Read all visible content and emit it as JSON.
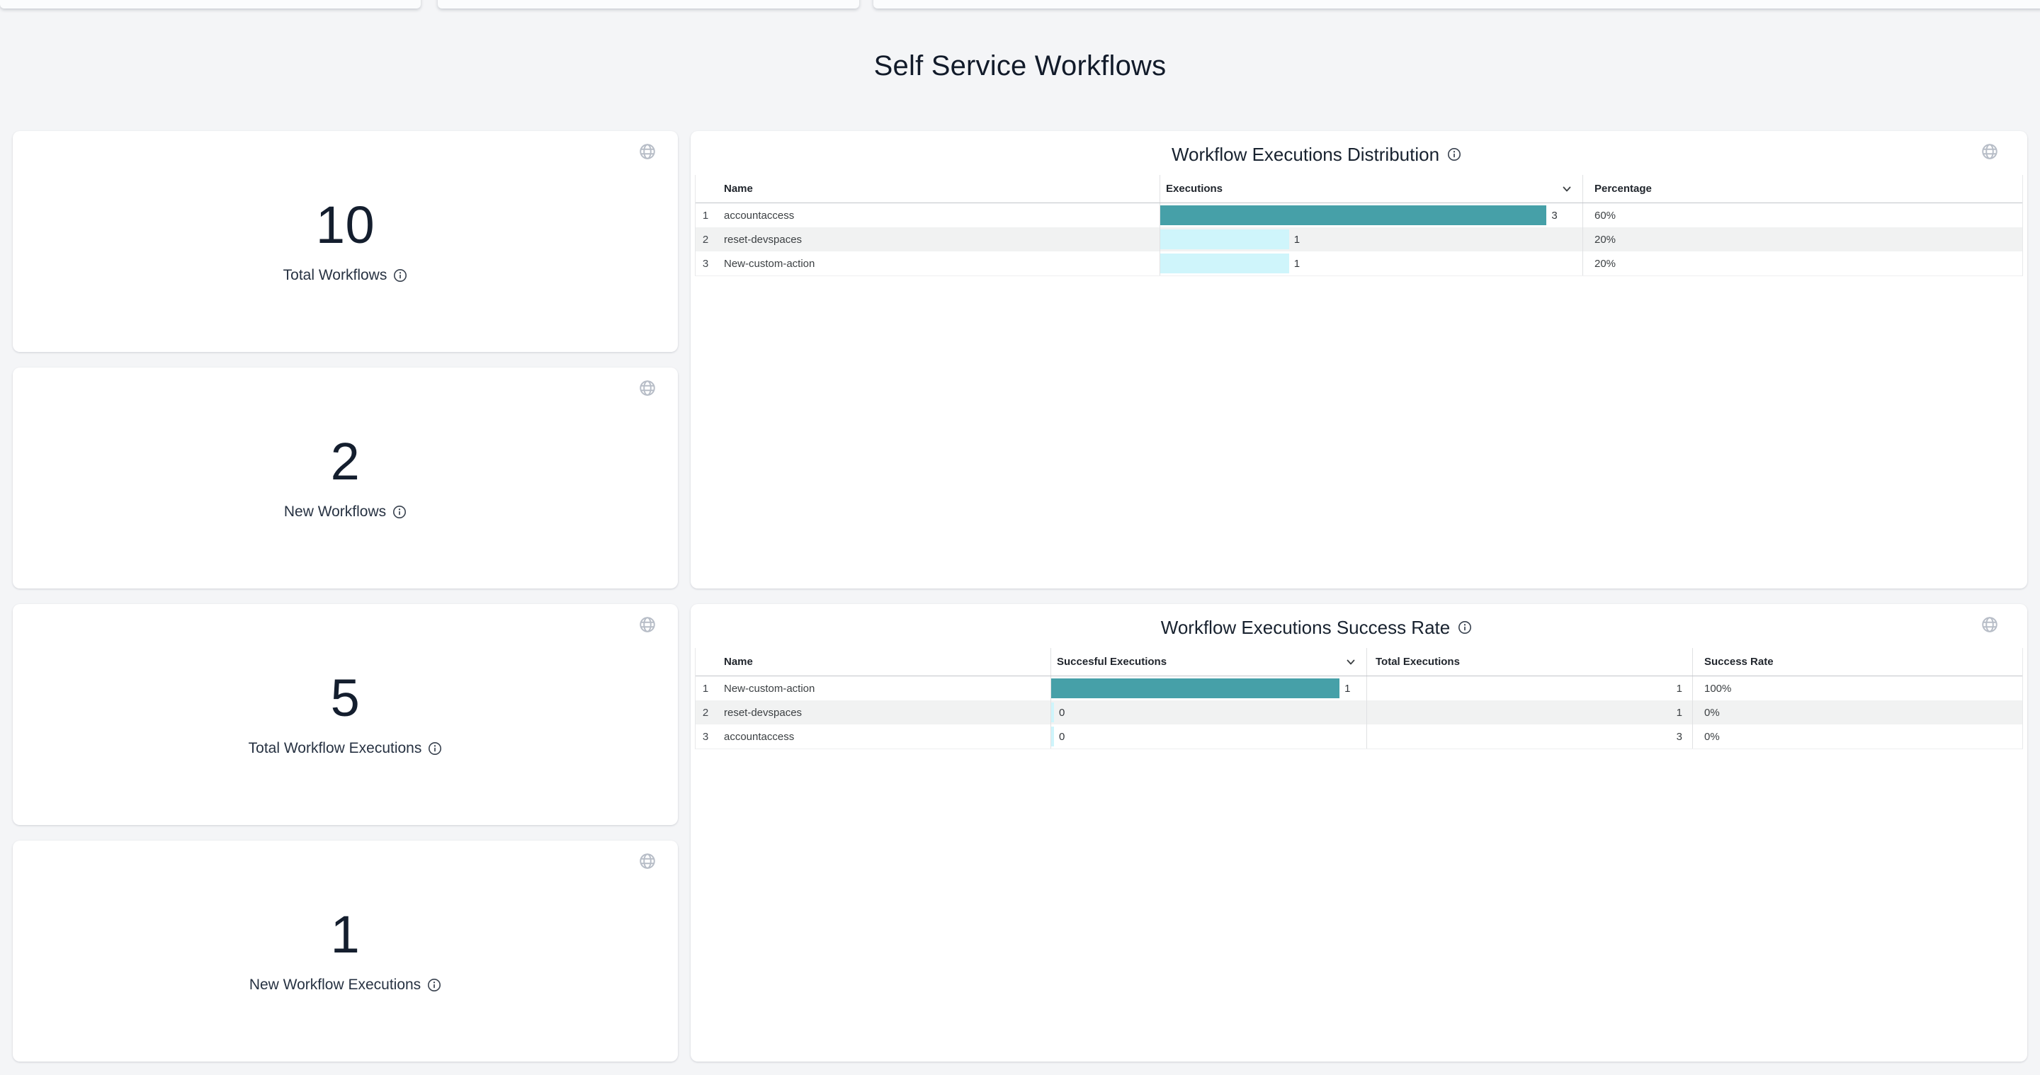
{
  "page": {
    "title": "Self Service Workflows"
  },
  "colors": {
    "page-bg": "#f4f5f7",
    "card-bg": "#ffffff",
    "heading": "#121b2a",
    "table-text": "#3c4043",
    "accent-teal": "#46a0a8",
    "accent-cyan": "#cff5fb",
    "alt-row": "#f1f2f2",
    "divider": "#e0e1e3",
    "header-underline": "#c2c5ca",
    "icon-gray": "#b7bdc7"
  },
  "stat_cards": [
    {
      "value": "10",
      "label": "Total Workflows"
    },
    {
      "value": "2",
      "label": "New Workflows"
    },
    {
      "value": "5",
      "label": "Total Workflow Executions"
    },
    {
      "value": "1",
      "label": "New Workflow Executions"
    }
  ],
  "distribution_panel": {
    "title": "Workflow Executions Distribution",
    "columns": [
      "Name",
      "Executions",
      "Percentage"
    ],
    "sorted_by": "Executions",
    "sort_direction": "descending",
    "max_executions": 3,
    "rows": [
      {
        "index": "1",
        "name": "accountaccess",
        "executions": 3,
        "percentage": "60%"
      },
      {
        "index": "2",
        "name": "reset-devspaces",
        "executions": 1,
        "percentage": "20%"
      },
      {
        "index": "3",
        "name": "New-custom-action",
        "executions": 1,
        "percentage": "20%"
      }
    ]
  },
  "success_panel": {
    "title": "Workflow Executions Success Rate",
    "columns": [
      "Name",
      "Succesful Executions",
      "Total Executions",
      "Success Rate"
    ],
    "sorted_by": "Succesful Executions",
    "sort_direction": "descending",
    "max_successful": 1,
    "rows": [
      {
        "index": "1",
        "name": "New-custom-action",
        "successful": 1,
        "total": "1",
        "rate": "100%"
      },
      {
        "index": "2",
        "name": "reset-devspaces",
        "successful": 0,
        "total": "1",
        "rate": "0%"
      },
      {
        "index": "3",
        "name": "accountaccess",
        "successful": 0,
        "total": "3",
        "rate": "0%"
      }
    ]
  },
  "chart_data": [
    {
      "type": "table",
      "title": "Workflow Executions Distribution",
      "columns": [
        "Name",
        "Executions",
        "Percentage"
      ],
      "bar_column": "Executions",
      "bar_max": 3,
      "rows": [
        [
          "accountaccess",
          3,
          "60%"
        ],
        [
          "reset-devspaces",
          1,
          "20%"
        ],
        [
          "New-custom-action",
          1,
          "20%"
        ]
      ]
    },
    {
      "type": "table",
      "title": "Workflow Executions Success Rate",
      "columns": [
        "Name",
        "Succesful Executions",
        "Total Executions",
        "Success Rate"
      ],
      "bar_column": "Succesful Executions",
      "bar_max": 1,
      "rows": [
        [
          "New-custom-action",
          1,
          1,
          "100%"
        ],
        [
          "reset-devspaces",
          0,
          1,
          "0%"
        ],
        [
          "accountaccess",
          0,
          3,
          "0%"
        ]
      ]
    }
  ]
}
